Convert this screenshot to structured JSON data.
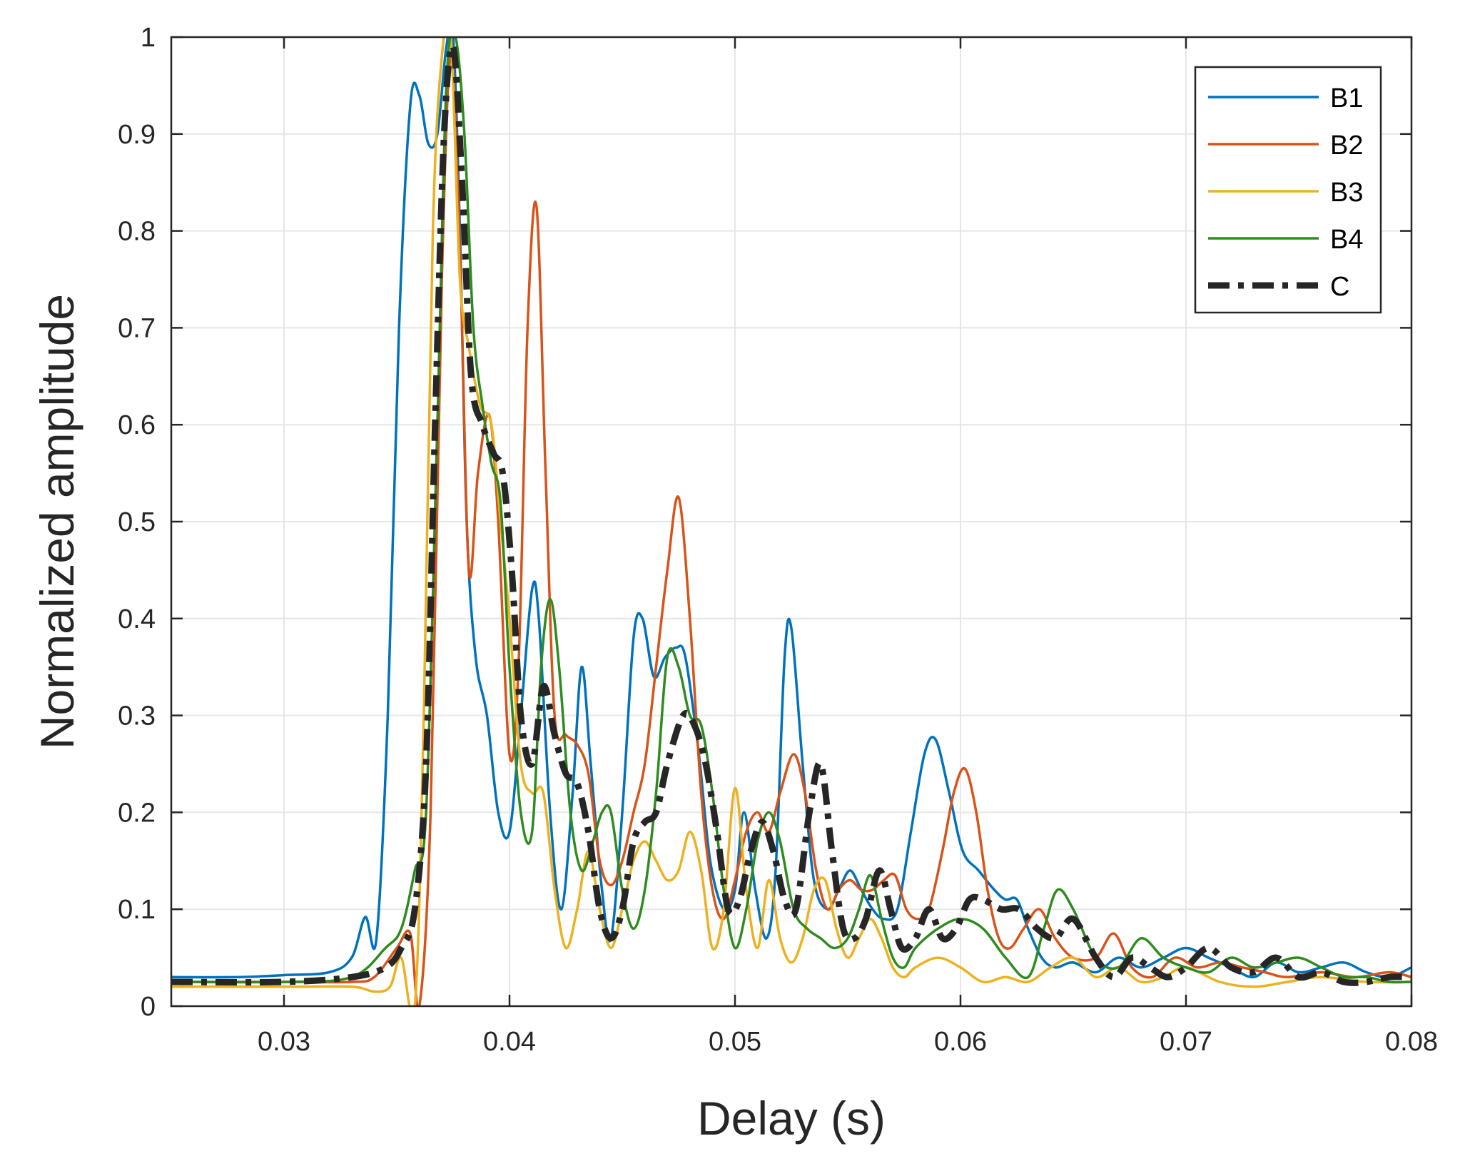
{
  "chart_data": {
    "type": "line",
    "title": "",
    "xlabel": "Delay (s)",
    "ylabel": "Normalized amplitude",
    "xlim": [
      0.025,
      0.08
    ],
    "ylim": [
      0,
      1
    ],
    "xticks": [
      0.03,
      0.04,
      0.05,
      0.06,
      0.07,
      0.08
    ],
    "xtick_labels": [
      "0.03",
      "0.04",
      "0.05",
      "0.06",
      "0.07",
      "0.08"
    ],
    "yticks": [
      0,
      0.1,
      0.2,
      0.3,
      0.4,
      0.5,
      0.6,
      0.7,
      0.8,
      0.9,
      1
    ],
    "ytick_labels": [
      "0",
      "0.1",
      "0.2",
      "0.3",
      "0.4",
      "0.5",
      "0.6",
      "0.7",
      "0.8",
      "0.9",
      "1"
    ],
    "grid": true,
    "legend_position": "top-right",
    "series": [
      {
        "name": "B1",
        "color": "#0072BD",
        "style": "solid",
        "x": [
          0.025,
          0.028,
          0.03,
          0.032,
          0.033,
          0.0336,
          0.0341,
          0.0346,
          0.0351,
          0.0356,
          0.036,
          0.0364,
          0.0368,
          0.0372,
          0.0375,
          0.0378,
          0.0381,
          0.0385,
          0.039,
          0.0395,
          0.04,
          0.0405,
          0.041,
          0.0413,
          0.0418,
          0.0423,
          0.0428,
          0.0432,
          0.0436,
          0.0441,
          0.0445,
          0.045,
          0.0455,
          0.0459,
          0.0464,
          0.0469,
          0.0474,
          0.0478,
          0.0484,
          0.0489,
          0.0495,
          0.05,
          0.0504,
          0.0509,
          0.0514,
          0.0518,
          0.0522,
          0.0525,
          0.053,
          0.0535,
          0.0541,
          0.0546,
          0.0551,
          0.0556,
          0.0561,
          0.0566,
          0.0572,
          0.0578,
          0.0584,
          0.0589,
          0.0595,
          0.0601,
          0.0608,
          0.0615,
          0.062,
          0.0625,
          0.063,
          0.0636,
          0.0642,
          0.065,
          0.066,
          0.067,
          0.068,
          0.069,
          0.07,
          0.071,
          0.072,
          0.073,
          0.074,
          0.075,
          0.076,
          0.077,
          0.078,
          0.079,
          0.08
        ],
        "values": [
          0.03,
          0.03,
          0.032,
          0.035,
          0.05,
          0.092,
          0.07,
          0.3,
          0.7,
          0.93,
          0.94,
          0.89,
          0.9,
          0.99,
          1.0,
          0.8,
          0.5,
          0.36,
          0.3,
          0.2,
          0.18,
          0.3,
          0.43,
          0.4,
          0.2,
          0.1,
          0.22,
          0.35,
          0.25,
          0.12,
          0.07,
          0.2,
          0.38,
          0.4,
          0.34,
          0.36,
          0.37,
          0.36,
          0.26,
          0.15,
          0.1,
          0.12,
          0.2,
          0.12,
          0.07,
          0.14,
          0.36,
          0.39,
          0.25,
          0.13,
          0.1,
          0.12,
          0.14,
          0.12,
          0.1,
          0.09,
          0.1,
          0.18,
          0.26,
          0.275,
          0.22,
          0.16,
          0.14,
          0.12,
          0.11,
          0.11,
          0.08,
          0.05,
          0.04,
          0.045,
          0.035,
          0.05,
          0.04,
          0.05,
          0.06,
          0.05,
          0.04,
          0.03,
          0.045,
          0.035,
          0.04,
          0.045,
          0.035,
          0.03,
          0.04
        ]
      },
      {
        "name": "B2",
        "color": "#D95319",
        "style": "solid",
        "x": [
          0.025,
          0.03,
          0.033,
          0.034,
          0.035,
          0.0356,
          0.036,
          0.0365,
          0.037,
          0.0374,
          0.0378,
          0.0382,
          0.0386,
          0.0391,
          0.0395,
          0.04,
          0.0404,
          0.0408,
          0.0412,
          0.0416,
          0.042,
          0.0425,
          0.043,
          0.0435,
          0.044,
          0.0445,
          0.045,
          0.0455,
          0.046,
          0.0465,
          0.047,
          0.0475,
          0.048,
          0.0485,
          0.049,
          0.0495,
          0.05,
          0.0505,
          0.051,
          0.0515,
          0.052,
          0.0526,
          0.0531,
          0.0536,
          0.0541,
          0.0546,
          0.0551,
          0.0556,
          0.0561,
          0.0566,
          0.0571,
          0.0576,
          0.0581,
          0.0586,
          0.0592,
          0.0597,
          0.0602,
          0.0607,
          0.0612,
          0.0617,
          0.0622,
          0.0628,
          0.0635,
          0.0642,
          0.065,
          0.066,
          0.0668,
          0.0676,
          0.0685,
          0.0695,
          0.0705,
          0.0715,
          0.0725,
          0.0735,
          0.0745,
          0.076,
          0.0775,
          0.079,
          0.08
        ],
        "values": [
          0.025,
          0.025,
          0.025,
          0.03,
          0.06,
          0.075,
          0.0,
          0.2,
          0.75,
          0.98,
          0.78,
          0.45,
          0.55,
          0.61,
          0.5,
          0.26,
          0.35,
          0.7,
          0.825,
          0.55,
          0.3,
          0.28,
          0.27,
          0.24,
          0.15,
          0.125,
          0.15,
          0.2,
          0.25,
          0.35,
          0.45,
          0.525,
          0.4,
          0.22,
          0.12,
          0.09,
          0.13,
          0.18,
          0.2,
          0.18,
          0.22,
          0.26,
          0.22,
          0.14,
          0.1,
          0.12,
          0.13,
          0.12,
          0.12,
          0.13,
          0.135,
          0.1,
          0.09,
          0.1,
          0.16,
          0.22,
          0.245,
          0.2,
          0.12,
          0.07,
          0.06,
          0.08,
          0.1,
          0.07,
          0.05,
          0.05,
          0.075,
          0.04,
          0.03,
          0.05,
          0.04,
          0.045,
          0.04,
          0.035,
          0.03,
          0.035,
          0.03,
          0.035,
          0.03
        ]
      },
      {
        "name": "B3",
        "color": "#EDB120",
        "style": "solid",
        "x": [
          0.025,
          0.03,
          0.033,
          0.034,
          0.0347,
          0.0352,
          0.0358,
          0.0362,
          0.0366,
          0.037,
          0.0374,
          0.0378,
          0.0382,
          0.0387,
          0.0392,
          0.0396,
          0.04,
          0.0405,
          0.041,
          0.0415,
          0.042,
          0.0425,
          0.043,
          0.0435,
          0.044,
          0.0445,
          0.045,
          0.0455,
          0.046,
          0.0465,
          0.047,
          0.0475,
          0.048,
          0.0485,
          0.049,
          0.0495,
          0.05,
          0.0505,
          0.051,
          0.0515,
          0.052,
          0.0525,
          0.053,
          0.0535,
          0.054,
          0.0545,
          0.055,
          0.0555,
          0.056,
          0.0565,
          0.057,
          0.0575,
          0.058,
          0.059,
          0.06,
          0.061,
          0.062,
          0.063,
          0.064,
          0.065,
          0.066,
          0.067,
          0.068,
          0.069,
          0.07,
          0.0715,
          0.073,
          0.0745,
          0.076,
          0.078,
          0.08
        ],
        "values": [
          0.02,
          0.02,
          0.02,
          0.015,
          0.02,
          0.05,
          0.0,
          0.3,
          0.8,
          0.98,
          1.0,
          0.75,
          0.68,
          0.62,
          0.6,
          0.5,
          0.4,
          0.25,
          0.22,
          0.22,
          0.12,
          0.06,
          0.1,
          0.16,
          0.1,
          0.06,
          0.1,
          0.15,
          0.17,
          0.15,
          0.13,
          0.14,
          0.18,
          0.14,
          0.06,
          0.1,
          0.225,
          0.12,
          0.06,
          0.13,
          0.07,
          0.045,
          0.07,
          0.12,
          0.13,
          0.08,
          0.05,
          0.07,
          0.09,
          0.07,
          0.04,
          0.03,
          0.04,
          0.05,
          0.04,
          0.025,
          0.03,
          0.025,
          0.04,
          0.05,
          0.03,
          0.04,
          0.025,
          0.03,
          0.04,
          0.025,
          0.02,
          0.025,
          0.03,
          0.025,
          0.025
        ]
      },
      {
        "name": "B4",
        "color": "#77AC30",
        "style": "solid",
        "strokeColor": "#2e8b1e",
        "x": [
          0.025,
          0.03,
          0.033,
          0.0345,
          0.0352,
          0.0358,
          0.0363,
          0.0368,
          0.0372,
          0.0376,
          0.038,
          0.0384,
          0.0388,
          0.0392,
          0.0396,
          0.04,
          0.0405,
          0.041,
          0.0414,
          0.0418,
          0.0422,
          0.0427,
          0.0432,
          0.0437,
          0.0441,
          0.0445,
          0.045,
          0.0455,
          0.046,
          0.0465,
          0.047,
          0.0475,
          0.048,
          0.0485,
          0.049,
          0.0495,
          0.05,
          0.0505,
          0.051,
          0.0515,
          0.052,
          0.0526,
          0.0532,
          0.0538,
          0.0544,
          0.055,
          0.0555,
          0.056,
          0.0565,
          0.057,
          0.0575,
          0.058,
          0.059,
          0.06,
          0.061,
          0.062,
          0.063,
          0.0637,
          0.0643,
          0.065,
          0.066,
          0.067,
          0.068,
          0.069,
          0.07,
          0.071,
          0.072,
          0.073,
          0.074,
          0.075,
          0.076,
          0.077,
          0.078,
          0.079,
          0.08
        ],
        "values": [
          0.025,
          0.025,
          0.03,
          0.06,
          0.08,
          0.14,
          0.2,
          0.6,
          0.95,
          1.0,
          0.9,
          0.7,
          0.62,
          0.56,
          0.52,
          0.35,
          0.2,
          0.18,
          0.35,
          0.42,
          0.35,
          0.2,
          0.14,
          0.17,
          0.2,
          0.2,
          0.12,
          0.08,
          0.12,
          0.22,
          0.36,
          0.35,
          0.3,
          0.29,
          0.22,
          0.12,
          0.06,
          0.1,
          0.17,
          0.2,
          0.17,
          0.1,
          0.08,
          0.07,
          0.06,
          0.07,
          0.1,
          0.135,
          0.09,
          0.05,
          0.04,
          0.06,
          0.08,
          0.09,
          0.08,
          0.05,
          0.03,
          0.08,
          0.12,
          0.1,
          0.05,
          0.04,
          0.07,
          0.05,
          0.04,
          0.035,
          0.05,
          0.04,
          0.045,
          0.05,
          0.04,
          0.03,
          0.03,
          0.025,
          0.025
        ]
      },
      {
        "name": "C",
        "color": "#262626",
        "style": "dashdot",
        "x": [
          0.025,
          0.03,
          0.033,
          0.0345,
          0.0352,
          0.0358,
          0.0363,
          0.0367,
          0.0371,
          0.0375,
          0.0379,
          0.0383,
          0.0388,
          0.0393,
          0.0397,
          0.0401,
          0.0405,
          0.041,
          0.0415,
          0.042,
          0.0425,
          0.043,
          0.0435,
          0.044,
          0.0445,
          0.045,
          0.0455,
          0.046,
          0.0465,
          0.047,
          0.0477,
          0.0482,
          0.0487,
          0.0492,
          0.0497,
          0.0502,
          0.0507,
          0.0512,
          0.0517,
          0.0522,
          0.0527,
          0.0533,
          0.0538,
          0.0543,
          0.0548,
          0.0553,
          0.0558,
          0.0564,
          0.0569,
          0.0574,
          0.058,
          0.0586,
          0.0592,
          0.0598,
          0.0604,
          0.061,
          0.0618,
          0.0626,
          0.0634,
          0.0642,
          0.065,
          0.066,
          0.0668,
          0.0676,
          0.0684,
          0.0692,
          0.07,
          0.071,
          0.072,
          0.073,
          0.074,
          0.075,
          0.076,
          0.077,
          0.078,
          0.079,
          0.08
        ],
        "values": [
          0.025,
          0.025,
          0.03,
          0.04,
          0.06,
          0.1,
          0.25,
          0.6,
          0.9,
          0.99,
          0.85,
          0.65,
          0.6,
          0.57,
          0.55,
          0.45,
          0.3,
          0.25,
          0.33,
          0.28,
          0.24,
          0.23,
          0.18,
          0.1,
          0.07,
          0.1,
          0.17,
          0.19,
          0.2,
          0.25,
          0.3,
          0.29,
          0.25,
          0.18,
          0.1,
          0.11,
          0.16,
          0.19,
          0.16,
          0.11,
          0.1,
          0.2,
          0.25,
          0.16,
          0.08,
          0.07,
          0.09,
          0.14,
          0.1,
          0.06,
          0.07,
          0.1,
          0.07,
          0.08,
          0.11,
          0.11,
          0.1,
          0.1,
          0.08,
          0.07,
          0.09,
          0.05,
          0.03,
          0.05,
          0.04,
          0.03,
          0.04,
          0.06,
          0.04,
          0.035,
          0.05,
          0.03,
          0.035,
          0.025,
          0.025,
          0.03,
          0.03
        ]
      }
    ]
  }
}
